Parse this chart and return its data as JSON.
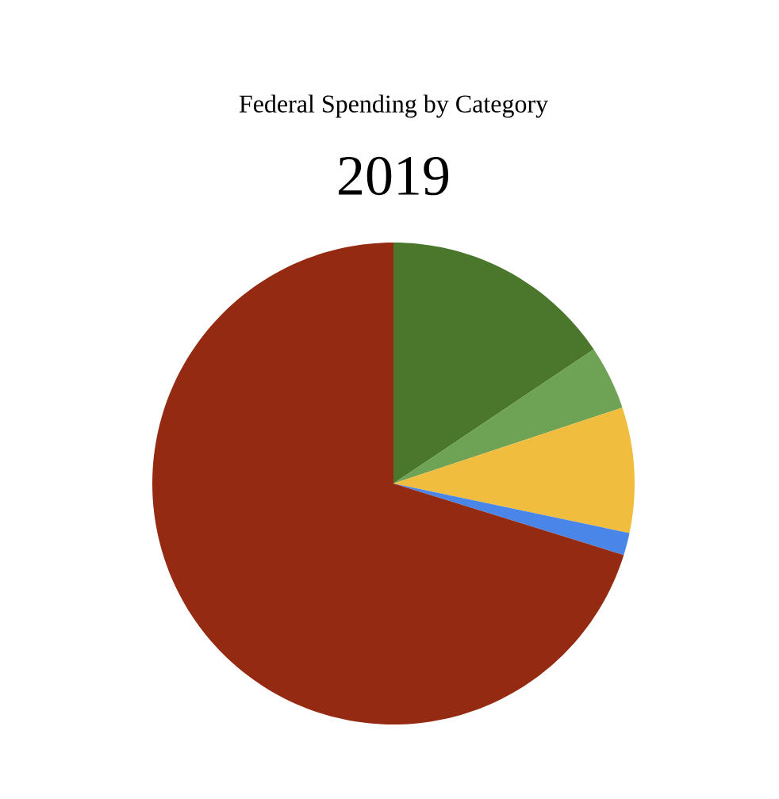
{
  "chart_data": {
    "type": "pie",
    "title": "Federal Spending by Category",
    "subtitle": "2019",
    "categories": [
      null,
      null,
      null,
      null,
      null
    ],
    "values": [
      15.6,
      4.3,
      8.4,
      1.5,
      70.2
    ],
    "colors": [
      "#4a772c",
      "#6ea254",
      "#f1bd3f",
      "#4a86e8",
      "#952a12"
    ]
  }
}
